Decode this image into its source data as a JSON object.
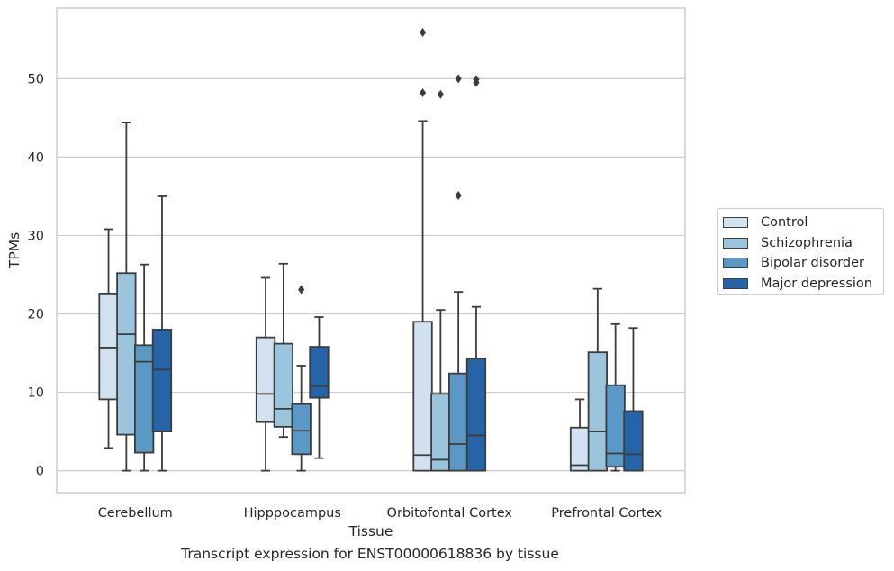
{
  "caption": "Transcript expression for ENST00000618836 by tissue",
  "colors": {
    "Control": "#d1e1ef",
    "Schizophrenia": "#9bc4dd",
    "Bipolar disorder": "#5a99c6",
    "Major depression": "#2565a7",
    "line": "#3c3c3c",
    "grid": "#cccccc"
  },
  "legend": {
    "items": [
      {
        "label": "Control"
      },
      {
        "label": "Schizophrenia"
      },
      {
        "label": "Bipolar disorder"
      },
      {
        "label": "Major depression"
      }
    ]
  },
  "chart_data": {
    "type": "box",
    "title": "",
    "xlabel": "Tissue",
    "ylabel": "TPMs",
    "ylim": [
      -2.8,
      59
    ],
    "yticks": [
      0,
      10,
      20,
      30,
      40,
      50
    ],
    "grid": true,
    "legend_placement": "right-outside",
    "categories": [
      "Cerebellum",
      "Hipppocampus",
      "Orbitofontal Cortex",
      "Prefrontal Cortex"
    ],
    "series": [
      {
        "name": "Control",
        "boxes": [
          {
            "whislo": 2.9,
            "q1": 9.1,
            "med": 15.7,
            "q3": 22.6,
            "whishi": 30.8,
            "fliers": []
          },
          {
            "whislo": 0,
            "q1": 6.2,
            "med": 9.8,
            "q3": 17.0,
            "whishi": 24.6,
            "fliers": []
          },
          {
            "whislo": 0,
            "q1": 0,
            "med": 2.0,
            "q3": 19.0,
            "whishi": 44.6,
            "fliers": [
              55.9,
              48.2
            ]
          },
          {
            "whislo": 0,
            "q1": 0,
            "med": 0.7,
            "q3": 5.5,
            "whishi": 9.1,
            "fliers": []
          }
        ]
      },
      {
        "name": "Schizophrenia",
        "boxes": [
          {
            "whislo": 0,
            "q1": 4.6,
            "med": 17.4,
            "q3": 25.2,
            "whishi": 44.4,
            "fliers": []
          },
          {
            "whislo": 4.3,
            "q1": 5.6,
            "med": 7.9,
            "q3": 16.2,
            "whishi": 26.4,
            "fliers": []
          },
          {
            "whislo": 0,
            "q1": 0,
            "med": 1.4,
            "q3": 9.8,
            "whishi": 20.5,
            "fliers": [
              48.0
            ]
          },
          {
            "whislo": 0,
            "q1": 0,
            "med": 5.0,
            "q3": 15.1,
            "whishi": 23.2,
            "fliers": []
          }
        ]
      },
      {
        "name": "Bipolar disorder",
        "boxes": [
          {
            "whislo": 0,
            "q1": 2.3,
            "med": 13.9,
            "q3": 16.0,
            "whishi": 26.3,
            "fliers": []
          },
          {
            "whislo": 0,
            "q1": 2.1,
            "med": 5.1,
            "q3": 8.5,
            "whishi": 13.4,
            "fliers": [
              23.1
            ]
          },
          {
            "whislo": 0,
            "q1": 0,
            "med": 3.4,
            "q3": 12.4,
            "whishi": 22.8,
            "fliers": [
              50.0,
              35.1
            ]
          },
          {
            "whislo": 0,
            "q1": 0.5,
            "med": 2.2,
            "q3": 10.9,
            "whishi": 18.7,
            "fliers": []
          }
        ]
      },
      {
        "name": "Major depression",
        "boxes": [
          {
            "whislo": 0,
            "q1": 5.0,
            "med": 12.9,
            "q3": 18.0,
            "whishi": 35.0,
            "fliers": []
          },
          {
            "whislo": 1.6,
            "q1": 9.3,
            "med": 10.8,
            "q3": 15.8,
            "whishi": 19.6,
            "fliers": []
          },
          {
            "whislo": 0,
            "q1": 0,
            "med": 4.5,
            "q3": 14.3,
            "whishi": 20.9,
            "fliers": [
              49.9,
              49.5
            ]
          },
          {
            "whislo": 0,
            "q1": 0,
            "med": 2.1,
            "q3": 7.6,
            "whishi": 18.2,
            "fliers": []
          }
        ]
      }
    ]
  }
}
